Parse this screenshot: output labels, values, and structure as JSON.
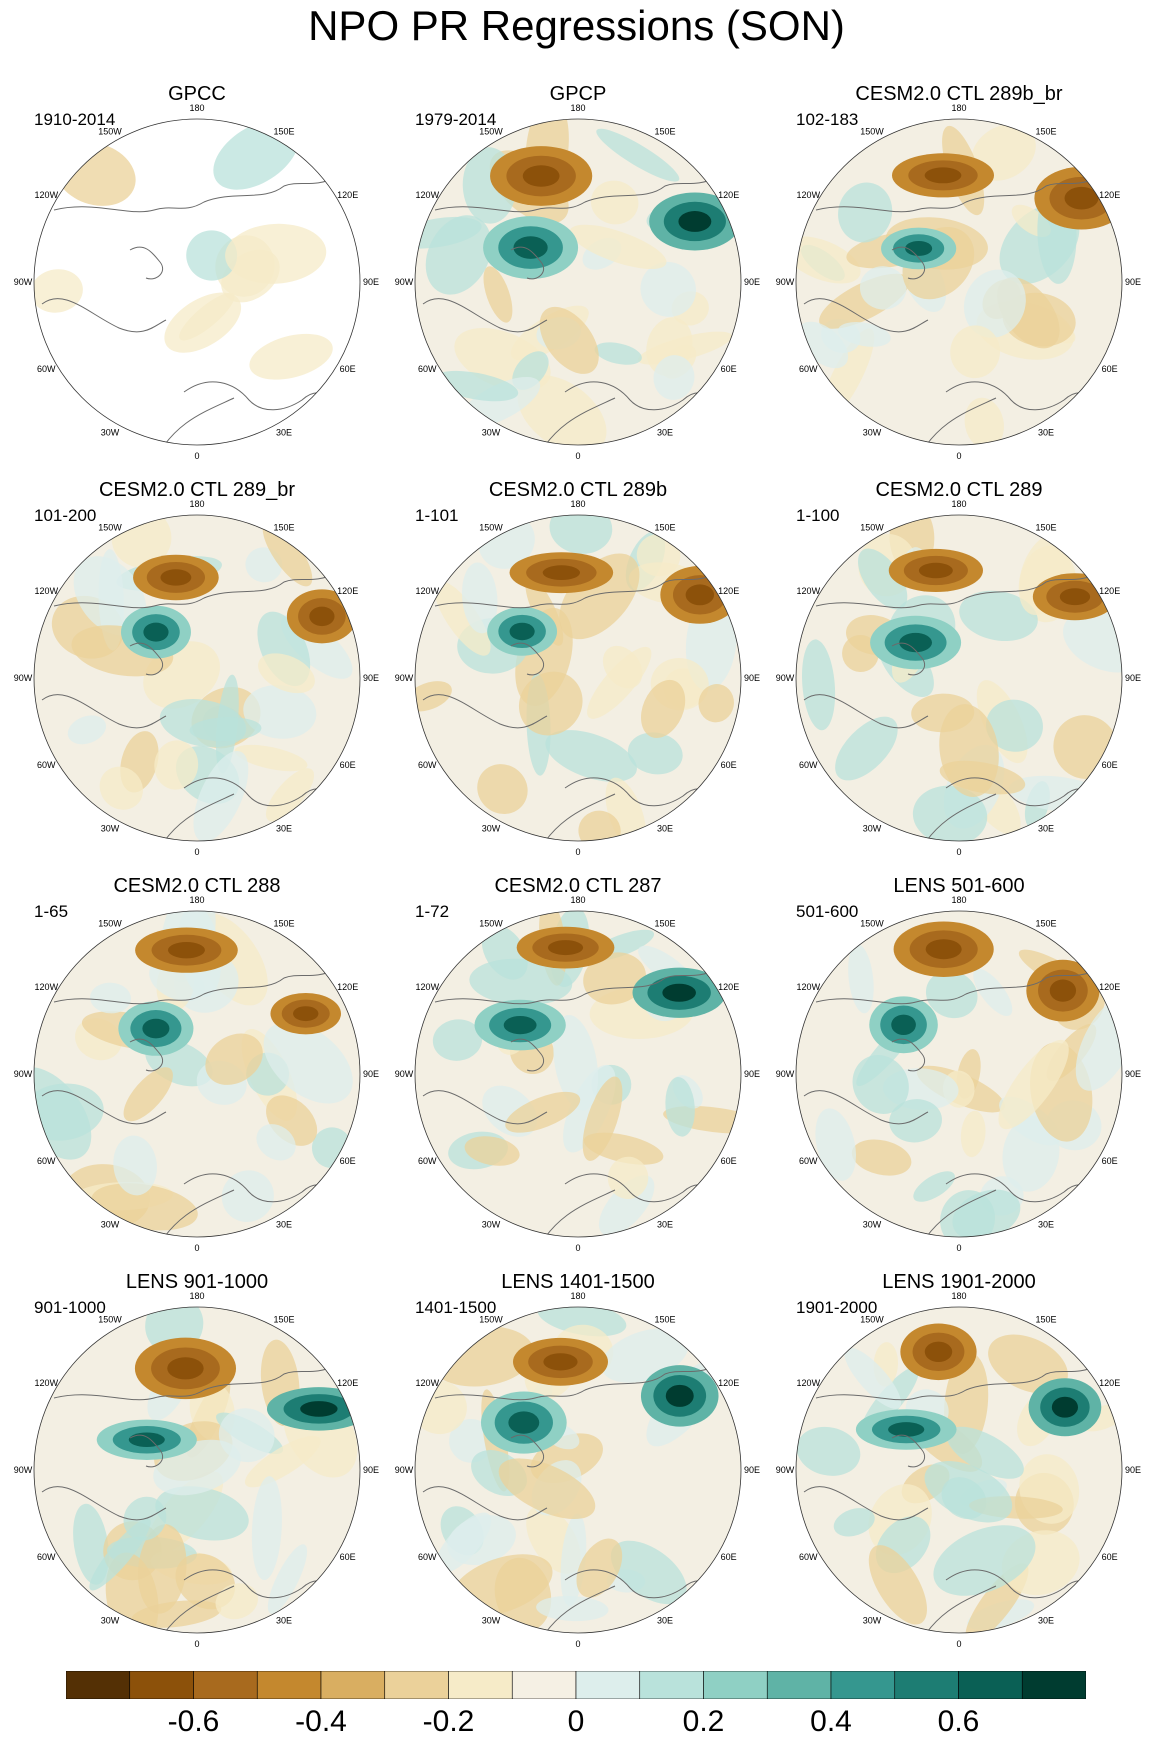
{
  "title": "NPO PR Regressions (SON)",
  "lon_labels": [
    "180",
    "150E",
    "120E",
    "90E",
    "60E",
    "30E",
    "0",
    "30W",
    "60W",
    "90W",
    "120W",
    "150W"
  ],
  "panels": [
    {
      "title": "GPCC",
      "period": "1910-2014"
    },
    {
      "title": "GPCP",
      "period": "1979-2014"
    },
    {
      "title": "CESM2.0 CTL 289b_br",
      "period": "102-183"
    },
    {
      "title": "CESM2.0 CTL 289_br",
      "period": "101-200"
    },
    {
      "title": "CESM2.0 CTL 289b",
      "period": "1-101"
    },
    {
      "title": "CESM2.0 CTL 289",
      "period": "1-100"
    },
    {
      "title": "CESM2.0 CTL 288",
      "period": "1-65"
    },
    {
      "title": "CESM2.0 CTL 287",
      "period": "1-72"
    },
    {
      "title": "LENS 501-600",
      "period": "501-600"
    },
    {
      "title": "LENS 901-1000",
      "period": "901-1000"
    },
    {
      "title": "LENS 1401-1500",
      "period": "1401-1500"
    },
    {
      "title": "LENS 1901-2000",
      "period": "1901-2000"
    }
  ],
  "colorbar": {
    "labels": [
      "-0.6",
      "-0.4",
      "-0.2",
      "0",
      "0.2",
      "0.4",
      "0.6"
    ],
    "colors": [
      "#543005",
      "#8c510a",
      "#a86a1e",
      "#c4882e",
      "#d9ae61",
      "#ebd19a",
      "#f6ebc8",
      "#f5f0e4",
      "#ddeeec",
      "#b9e2db",
      "#8fd0c4",
      "#5fb3a6",
      "#35978f",
      "#1d7d73",
      "#0a6055",
      "#003c30"
    ]
  },
  "colors": {
    "land_outline": "#6b6b6b",
    "map_border": "#333333"
  }
}
